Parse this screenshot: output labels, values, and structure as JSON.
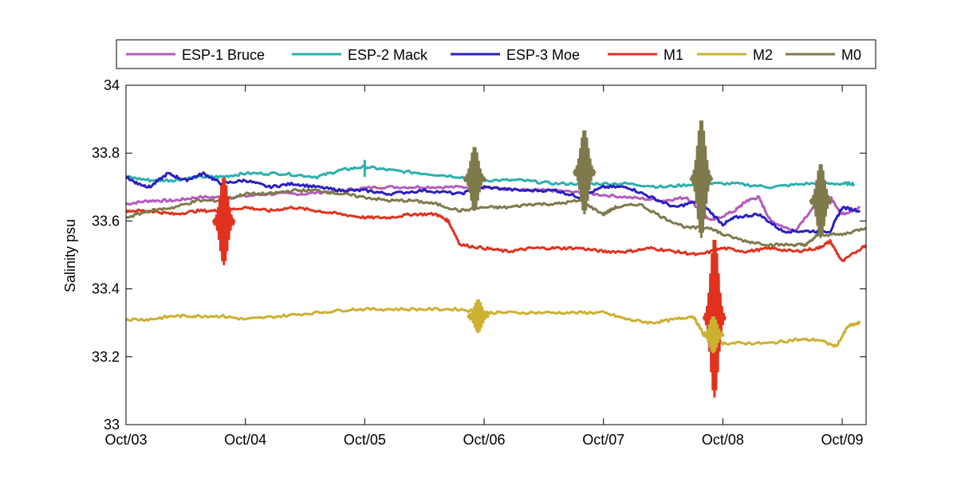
{
  "chart_data": {
    "type": "line",
    "title": "",
    "xlabel": "",
    "ylabel": "Salinity psu",
    "xlim": [
      0,
      6.2
    ],
    "ylim": [
      33,
      34
    ],
    "grid": false,
    "legend_position": "top-outside",
    "x_tick_values": [
      0,
      1,
      2,
      3,
      4,
      5,
      6
    ],
    "x_tick_labels": [
      "Oct/03",
      "Oct/04",
      "Oct/05",
      "Oct/06",
      "Oct/07",
      "Oct/08",
      "Oct/09"
    ],
    "y_tick_values": [
      33,
      33.2,
      33.4,
      33.6,
      33.8,
      34
    ],
    "y_tick_labels": [
      "33",
      "33.2",
      "33.4",
      "33.6",
      "33.8",
      "34"
    ],
    "series": [
      {
        "name": "ESP-1 Bruce",
        "color": "#b45abf",
        "x": [
          0,
          0.2,
          0.4,
          0.6,
          0.9,
          1.2,
          1.5,
          1.8,
          2.1,
          2.4,
          2.7,
          3.0,
          3.3,
          3.6,
          3.9,
          4.2,
          4.5,
          4.7,
          4.9,
          5.1,
          5.2,
          5.3,
          5.4,
          5.6,
          5.8,
          5.9,
          6.0,
          6.15
        ],
        "y": [
          33.65,
          33.66,
          33.66,
          33.67,
          33.67,
          33.68,
          33.68,
          33.69,
          33.7,
          33.7,
          33.7,
          33.7,
          33.69,
          33.69,
          33.68,
          33.67,
          33.66,
          33.67,
          33.6,
          33.63,
          33.66,
          33.67,
          33.6,
          33.57,
          33.66,
          33.67,
          33.62,
          33.64
        ]
      },
      {
        "name": "ESP-2 Mack",
        "color": "#2ab0ab",
        "x": [
          0,
          0.2,
          0.4,
          0.6,
          0.8,
          1.0,
          1.3,
          1.6,
          1.8,
          2.0,
          2.2,
          2.5,
          2.8,
          3.0,
          3.3,
          3.6,
          3.9,
          4.2,
          4.5,
          4.8,
          5.1,
          5.4,
          5.7,
          6.0,
          6.1
        ],
        "y": [
          33.73,
          33.72,
          33.72,
          33.73,
          33.73,
          33.74,
          33.74,
          33.73,
          33.75,
          33.76,
          33.75,
          33.74,
          33.73,
          33.72,
          33.72,
          33.71,
          33.71,
          33.71,
          33.7,
          33.71,
          33.71,
          33.7,
          33.71,
          33.71,
          33.71
        ],
        "spikes": [
          [
            2.0,
            33.78
          ]
        ]
      },
      {
        "name": "ESP-3 Moe",
        "color": "#2a1fbf",
        "x": [
          0,
          0.1,
          0.2,
          0.35,
          0.5,
          0.65,
          0.8,
          1.0,
          1.2,
          1.4,
          1.6,
          1.8,
          2.0,
          2.2,
          2.5,
          2.8,
          3.0,
          3.3,
          3.6,
          3.8,
          4.0,
          4.2,
          4.4,
          4.6,
          4.8,
          5.0,
          5.1,
          5.3,
          5.5,
          5.7,
          5.9,
          6.0,
          6.15
        ],
        "y": [
          33.73,
          33.71,
          33.7,
          33.74,
          33.72,
          33.74,
          33.71,
          33.72,
          33.7,
          33.71,
          33.7,
          33.69,
          33.69,
          33.68,
          33.69,
          33.68,
          33.7,
          33.69,
          33.69,
          33.67,
          33.7,
          33.7,
          33.67,
          33.64,
          33.66,
          33.59,
          33.61,
          33.62,
          33.57,
          33.57,
          33.57,
          33.64,
          33.63
        ]
      },
      {
        "name": "M1",
        "color": "#e0321e",
        "x": [
          0,
          0.2,
          0.4,
          0.6,
          0.8,
          1.0,
          1.2,
          1.4,
          1.6,
          1.8,
          2.0,
          2.2,
          2.4,
          2.6,
          2.7,
          2.8,
          3.0,
          3.2,
          3.4,
          3.6,
          3.8,
          4.0,
          4.2,
          4.4,
          4.6,
          4.8,
          5.0,
          5.2,
          5.4,
          5.6,
          5.8,
          5.9,
          6.0,
          6.2
        ],
        "y": [
          33.63,
          33.63,
          33.62,
          33.63,
          33.63,
          33.64,
          33.63,
          33.64,
          33.63,
          33.62,
          33.61,
          33.61,
          33.62,
          33.62,
          33.6,
          33.53,
          33.52,
          33.51,
          33.52,
          33.52,
          33.52,
          33.51,
          33.51,
          33.52,
          33.51,
          33.5,
          33.52,
          33.51,
          33.52,
          33.51,
          33.52,
          33.54,
          33.48,
          33.53
        ]
      },
      {
        "name": "M2",
        "color": "#ccb030",
        "x": [
          0,
          0.2,
          0.4,
          0.6,
          0.8,
          1.0,
          1.3,
          1.6,
          1.9,
          2.2,
          2.5,
          2.8,
          3.0,
          3.2,
          3.5,
          3.8,
          4.0,
          4.2,
          4.4,
          4.6,
          4.75,
          4.85,
          5.0,
          5.2,
          5.4,
          5.6,
          5.8,
          5.95,
          6.05,
          6.15
        ],
        "y": [
          33.31,
          33.31,
          33.32,
          33.32,
          33.32,
          33.31,
          33.32,
          33.33,
          33.34,
          33.34,
          33.34,
          33.34,
          33.33,
          33.33,
          33.33,
          33.33,
          33.33,
          33.31,
          33.3,
          33.31,
          33.32,
          33.26,
          33.24,
          33.24,
          33.24,
          33.25,
          33.25,
          33.23,
          33.29,
          33.3
        ]
      },
      {
        "name": "M0",
        "color": "#7f7a4c",
        "x": [
          0,
          0.2,
          0.4,
          0.6,
          0.8,
          1.0,
          1.2,
          1.4,
          1.6,
          1.8,
          2.0,
          2.2,
          2.4,
          2.6,
          2.8,
          3.0,
          3.2,
          3.4,
          3.6,
          3.8,
          4.0,
          4.1,
          4.3,
          4.5,
          4.7,
          4.9,
          5.0,
          5.2,
          5.4,
          5.6,
          5.7,
          5.8,
          6.0,
          6.2
        ],
        "y": [
          33.61,
          33.63,
          33.64,
          33.66,
          33.66,
          33.68,
          33.68,
          33.69,
          33.69,
          33.68,
          33.67,
          33.66,
          33.66,
          33.65,
          33.63,
          33.64,
          33.64,
          33.65,
          33.65,
          33.66,
          33.62,
          33.64,
          33.65,
          33.61,
          33.58,
          33.58,
          33.56,
          33.54,
          33.53,
          33.53,
          33.53,
          33.56,
          33.56,
          33.58
        ]
      }
    ],
    "spike_bursts": [
      {
        "series": "M1",
        "x": 0.82,
        "y_min": 33.47,
        "y_max": 33.73
      },
      {
        "series": "M0",
        "x": 2.92,
        "y_min": 33.63,
        "y_max": 33.82
      },
      {
        "series": "M0",
        "x": 3.84,
        "y_min": 33.62,
        "y_max": 33.87
      },
      {
        "series": "M0",
        "x": 4.82,
        "y_min": 33.55,
        "y_max": 33.9
      },
      {
        "series": "M1",
        "x": 4.93,
        "y_min": 33.08,
        "y_max": 33.55
      },
      {
        "series": "M0",
        "x": 5.82,
        "y_min": 33.55,
        "y_max": 33.77
      },
      {
        "series": "M2",
        "x": 2.95,
        "y_min": 33.27,
        "y_max": 33.37
      },
      {
        "series": "M2",
        "x": 4.92,
        "y_min": 33.21,
        "y_max": 33.32
      }
    ]
  }
}
